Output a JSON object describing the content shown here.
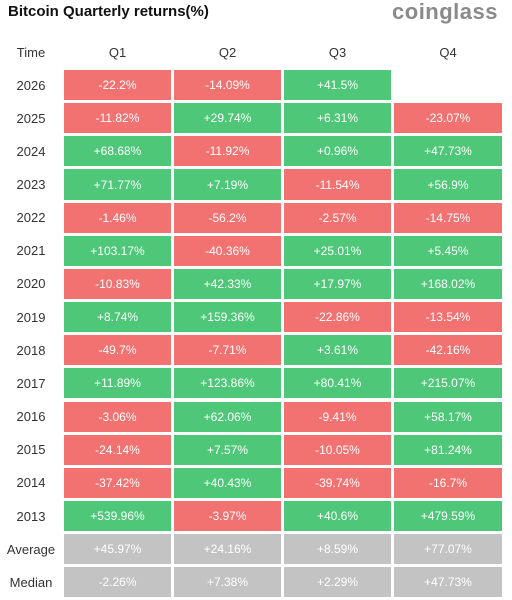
{
  "header": {
    "title": "Bitcoin Quarterly returns(%)",
    "brand": "coinglass"
  },
  "table": {
    "columns": [
      "Time",
      "Q1",
      "Q2",
      "Q3",
      "Q4"
    ],
    "rows": [
      [
        "2026",
        "-22.2%",
        "-14.09%",
        "+41.5%",
        null
      ],
      [
        "2025",
        "-11.82%",
        "+29.74%",
        "+6.31%",
        "-23.07%"
      ],
      [
        "2024",
        "+68.68%",
        "-11.92%",
        "+0.96%",
        "+47.73%"
      ],
      [
        "2023",
        "+71.77%",
        "+7.19%",
        "-11.54%",
        "+56.9%"
      ],
      [
        "2022",
        "-1.46%",
        "-56.2%",
        "-2.57%",
        "-14.75%"
      ],
      [
        "2021",
        "+103.17%",
        "-40.36%",
        "+25.01%",
        "+5.45%"
      ],
      [
        "2020",
        "-10.83%",
        "+42.33%",
        "+17.97%",
        "+168.02%"
      ],
      [
        "2019",
        "+8.74%",
        "+159.36%",
        "-22.86%",
        "-13.54%"
      ],
      [
        "2018",
        "-49.7%",
        "-7.71%",
        "+3.61%",
        "-42.16%"
      ],
      [
        "2017",
        "+11.89%",
        "+123.86%",
        "+80.41%",
        "+215.07%"
      ],
      [
        "2016",
        "-3.06%",
        "+62.06%",
        "-9.41%",
        "+58.17%"
      ],
      [
        "2015",
        "-24.14%",
        "+7.57%",
        "-10.05%",
        "+81.24%"
      ],
      [
        "2014",
        "-37.42%",
        "+40.43%",
        "-39.74%",
        "-16.7%"
      ],
      [
        "2013",
        "+539.96%",
        "-3.97%",
        "+40.6%",
        "+479.59%"
      ]
    ],
    "summary_rows": [
      [
        "Average",
        "+45.97%",
        "+24.16%",
        "+8.59%",
        "+77.07%"
      ],
      [
        "Median",
        "-2.26%",
        "+7.38%",
        "+2.29%",
        "+47.73%"
      ]
    ],
    "colors": {
      "positive": "#4ec878",
      "negative": "#f27272",
      "summary": "#c3c3c3"
    }
  }
}
